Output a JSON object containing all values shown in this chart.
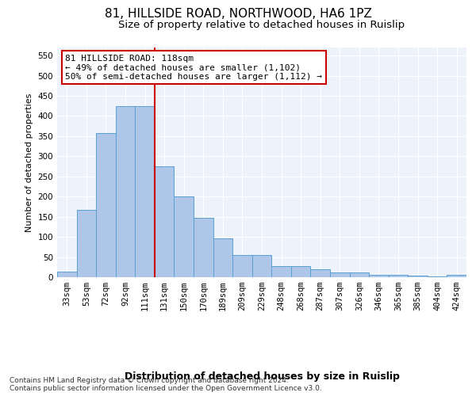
{
  "title": "81, HILLSIDE ROAD, NORTHWOOD, HA6 1PZ",
  "subtitle": "Size of property relative to detached houses in Ruislip",
  "xlabel": "Distribution of detached houses by size in Ruislip",
  "ylabel": "Number of detached properties",
  "footnote": "Contains HM Land Registry data © Crown copyright and database right 2024.\nContains public sector information licensed under the Open Government Licence v3.0.",
  "categories": [
    "33sqm",
    "53sqm",
    "72sqm",
    "92sqm",
    "111sqm",
    "131sqm",
    "150sqm",
    "170sqm",
    "189sqm",
    "209sqm",
    "229sqm",
    "248sqm",
    "268sqm",
    "287sqm",
    "307sqm",
    "326sqm",
    "346sqm",
    "365sqm",
    "385sqm",
    "404sqm",
    "424sqm"
  ],
  "values": [
    13,
    168,
    357,
    425,
    425,
    275,
    200,
    148,
    97,
    55,
    55,
    27,
    27,
    19,
    11,
    11,
    6,
    5,
    4,
    1,
    5
  ],
  "bar_color": "#aec6e8",
  "bar_edge_color": "#5a9fd4",
  "vline_color": "#cc0000",
  "annotation_text": "81 HILLSIDE ROAD: 118sqm\n← 49% of detached houses are smaller (1,102)\n50% of semi-detached houses are larger (1,112) →",
  "annotation_box_color": "#ffffff",
  "annotation_box_edge": "#cc0000",
  "ylim": [
    0,
    570
  ],
  "yticks": [
    0,
    50,
    100,
    150,
    200,
    250,
    300,
    350,
    400,
    450,
    500,
    550
  ],
  "title_fontsize": 11,
  "subtitle_fontsize": 9.5,
  "xlabel_fontsize": 9,
  "ylabel_fontsize": 8,
  "tick_fontsize": 7.5,
  "annotation_fontsize": 8,
  "bg_color": "#eef2fb"
}
